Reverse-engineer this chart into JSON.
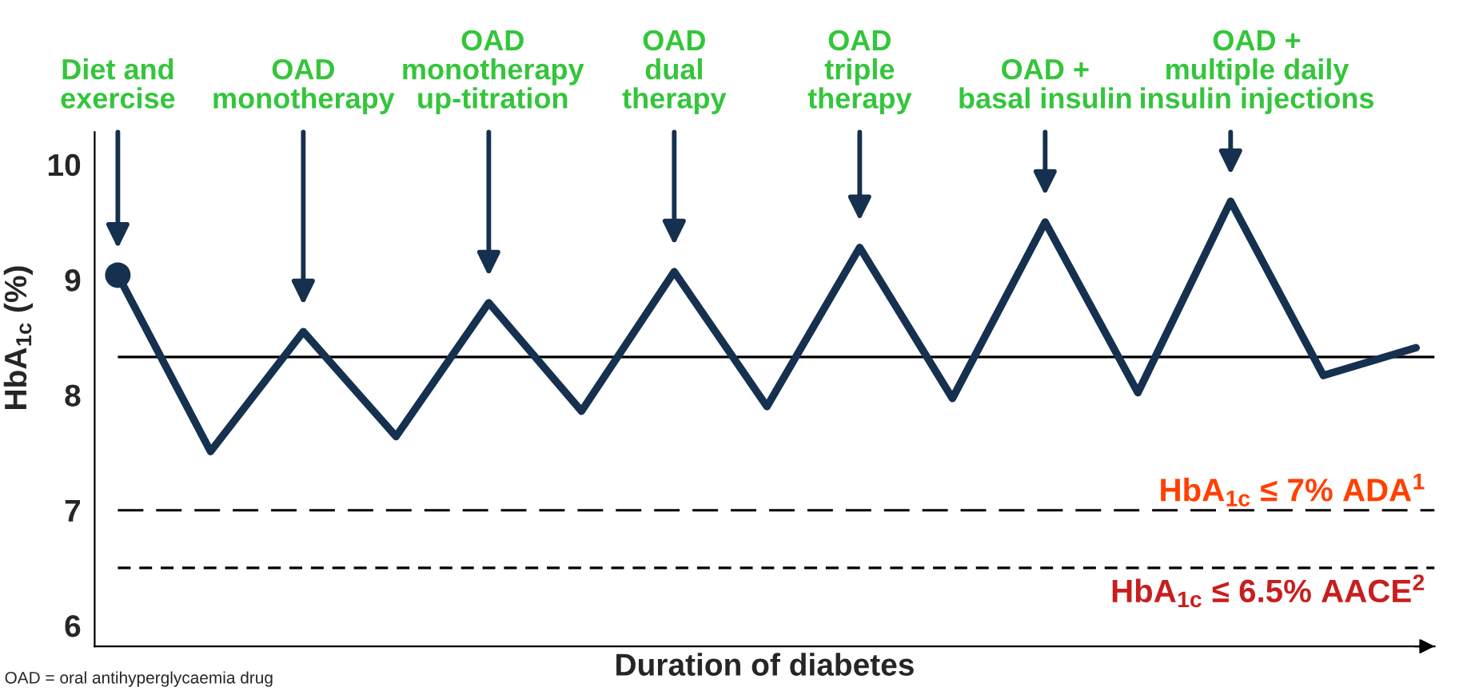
{
  "chart_data": {
    "type": "line",
    "xlabel": "Duration of diabetes",
    "ylabel": "HbA$_{1c}$ (%)",
    "categories": [
      null,
      null,
      null,
      null,
      null,
      null,
      null,
      null,
      null,
      null,
      null,
      null,
      null,
      null,
      null
    ],
    "series": [
      {
        "color": "#16304f",
        "marker": "none",
        "values": [
          9.04,
          7.51,
          8.55,
          7.64,
          8.8,
          7.86,
          9.07,
          7.9,
          9.28,
          7.97,
          9.5,
          8.02,
          9.68,
          8.17,
          8.41
        ]
      },
      {
        "type": "scatter",
        "color": "#16304f",
        "marker": "circle",
        "values": [
          9.04,
          null,
          null,
          null,
          null,
          null,
          null,
          null,
          null,
          null,
          null,
          null,
          null,
          null,
          null
        ]
      }
    ],
    "ylim": [
      5.82,
      10.28
    ],
    "yticks": [
      6,
      7,
      8,
      9,
      10
    ],
    "tick_labels": "y",
    "ref_lines": [
      {
        "axis": "y",
        "value": 8.33,
        "color": "#000000",
        "line_style": "solid"
      },
      {
        "axis": "y",
        "value": 7,
        "label": "HbA$_{1c}$ ≤ 7% ADA$^{1}$",
        "color": "#000000",
        "line_style": "dashed"
      },
      {
        "axis": "y",
        "value": 6.5,
        "label": "HbA$_{1c}$ ≤ 6.5% AACE$^{2}$",
        "color": "#000000",
        "line_style": "dotted"
      }
    ],
    "annotations": [
      "Diet and\nexercise",
      "OAD\nmonotherapy",
      "OAD\nmonotherapy\nup-titration",
      "OAD\ndual\ntherapy",
      "OAD\ntriple\ntherapy",
      "OAD +\nbasal insulin",
      "OAD +\nmultiple daily\ninsulin injections",
      "OAD = oral antihyperglycaemia drug"
    ]
  }
}
